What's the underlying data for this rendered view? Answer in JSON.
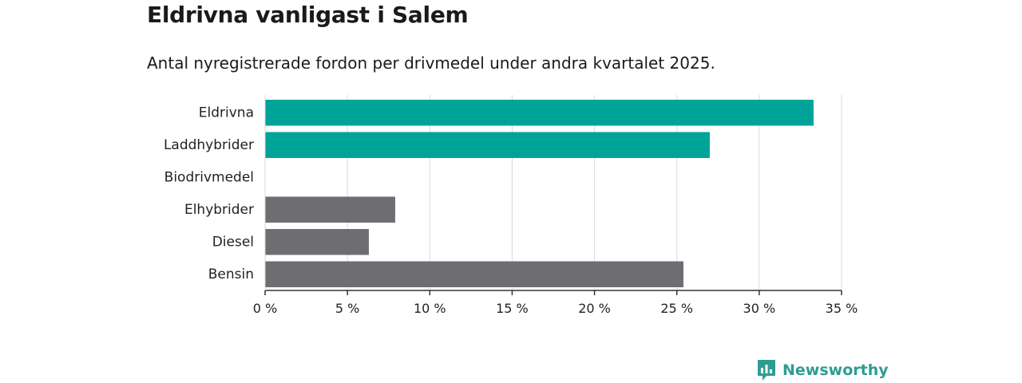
{
  "title": "Eldrivna vanligast i Salem",
  "subtitle": "Antal nyregistrerade fordon per drivmedel under andra kvartalet 2025.",
  "brand": {
    "name": "Newsworthy",
    "color": "#2f9c93",
    "icon": "newsworthy-logo-icon"
  },
  "colors": {
    "highlight": "#00a398",
    "default": "#6e6d72",
    "grid": "#d9d9d9",
    "axis": "#333333"
  },
  "chart_data": {
    "type": "bar",
    "orientation": "horizontal",
    "title": "Eldrivna vanligast i Salem",
    "subtitle": "Antal nyregistrerade fordon per drivmedel under andra kvartalet 2025.",
    "categories": [
      "Eldrivna",
      "Laddhybrider",
      "Biodrivmedel",
      "Elhybrider",
      "Diesel",
      "Bensin"
    ],
    "values": [
      33.3,
      27.0,
      0,
      7.9,
      6.3,
      25.4
    ],
    "highlight": [
      true,
      true,
      true,
      false,
      false,
      false
    ],
    "xlim": [
      0,
      35
    ],
    "xticks": [
      0,
      5,
      10,
      15,
      20,
      25,
      30,
      35
    ],
    "xtick_labels": [
      "0 %",
      "5 %",
      "10 %",
      "15 %",
      "20 %",
      "25 %",
      "30 %",
      "35 %"
    ],
    "xlabel": "",
    "ylabel": "",
    "grid": true,
    "legend": false
  }
}
